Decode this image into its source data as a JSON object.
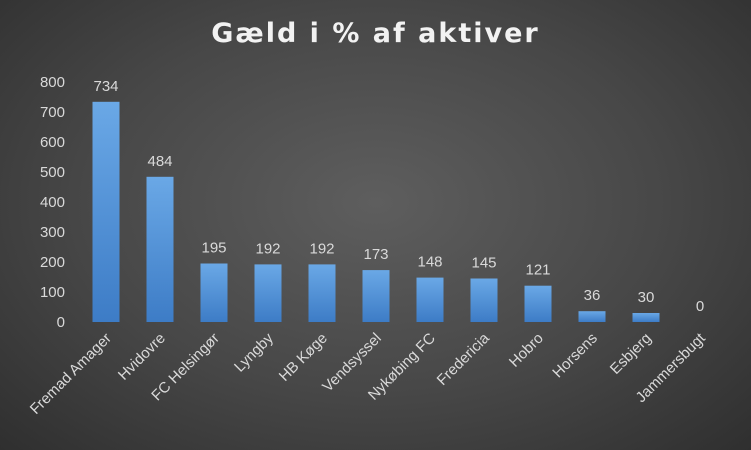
{
  "chart_data": {
    "type": "bar",
    "title": "Gæld i % af aktiver",
    "categories": [
      "Fremad Amager",
      "Hvidovre",
      "FC Helsingør",
      "Lyngby",
      "HB Køge",
      "Vendsyssel",
      "Nykøbing FC",
      "Fredericia",
      "Hobro",
      "Horsens",
      "Esbjerg",
      "Jammersbugt"
    ],
    "values": [
      734,
      484,
      195,
      192,
      192,
      173,
      148,
      145,
      121,
      36,
      30,
      0
    ],
    "ylim": [
      0,
      800
    ],
    "yticks": [
      0,
      100,
      200,
      300,
      400,
      500,
      600,
      700,
      800
    ],
    "grid": false,
    "data_labels": true,
    "colors": {
      "bar_top": "#6aa8e6",
      "bar_bottom": "#3d7cc6",
      "text": "#d9d9d9",
      "title": "#f2f2f2"
    }
  }
}
